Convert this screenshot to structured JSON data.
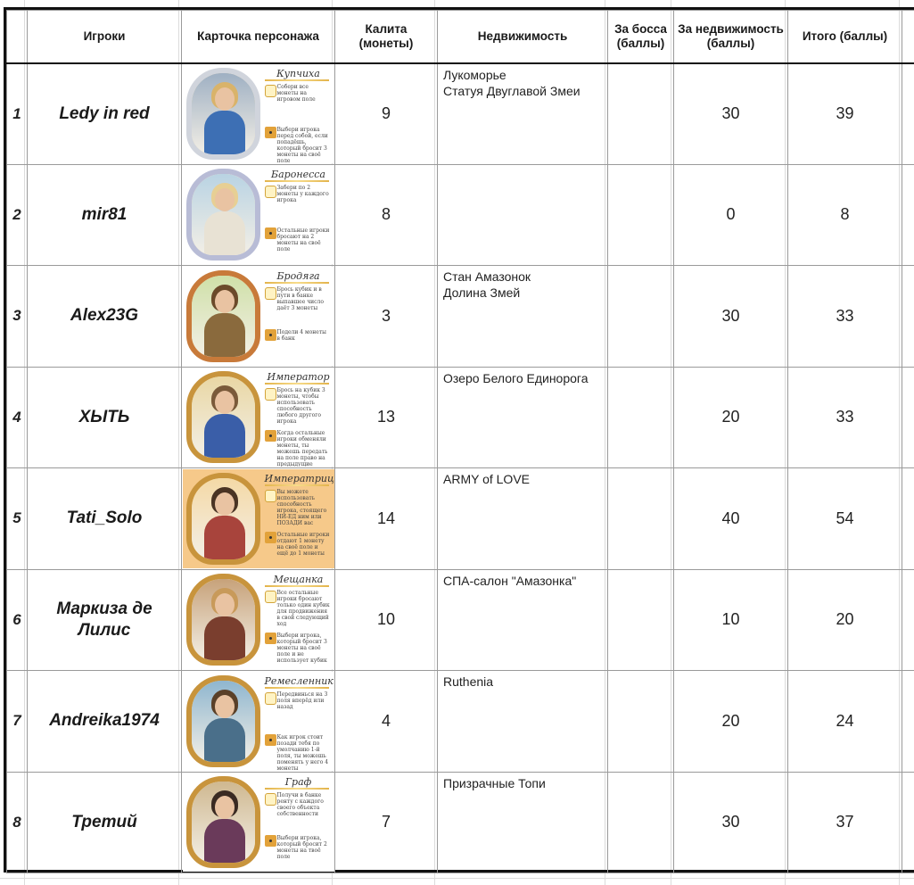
{
  "header": {
    "players": "Игроки",
    "card": "Карточка персонажа",
    "coins": "Калита (монеты)",
    "property": "Недвижимость",
    "boss": "За босса (баллы)",
    "property_pts": "За недвижимость (баллы)",
    "total": "Итого (баллы)"
  },
  "rows": [
    {
      "rank": "1",
      "name": "Ledy in red",
      "card_title": "Купчиха",
      "card_t1": "Собери все монеты на игровом поле",
      "card_t2": "Выбери игрока перед собой, если попадёшь, который бросит 3 монеты на своё поле",
      "coins": "9",
      "property_1": "Лукоморье",
      "property_2": "Статуя Двуглавой Змеи",
      "boss": "",
      "property_pts": "30",
      "total": "39",
      "frame": "#d0d4dc",
      "hair": "#d9b36a",
      "body": "#3d6fb4",
      "bg": "#9fb0c3"
    },
    {
      "rank": "2",
      "name": "mir81",
      "card_title": "Баронесса",
      "card_t1": "Забери по 2 монеты у каждого игрока",
      "card_t2": "Остальные игроки бросают на 2 монеты на своё поле",
      "coins": "8",
      "property_1": "",
      "property_2": "",
      "boss": "",
      "property_pts": "0",
      "total": "8",
      "frame": "#b8bcd6",
      "hair": "#e7cf94",
      "body": "#e8e2d4",
      "bg": "#b9d3e3"
    },
    {
      "rank": "3",
      "name": "Alex23G",
      "card_title": "Бродяга",
      "card_t1": "Брось кубик и в пути в банке выпавшее число даёт 3 монеты",
      "card_t2": "Подели 4 монеты в банк",
      "coins": "3",
      "property_1": "Стан Амазонок",
      "property_2": "Долина Змей",
      "boss": "",
      "property_pts": "30",
      "total": "33",
      "frame": "#c87a3a",
      "hair": "#6b4a2a",
      "body": "#8a6a3d",
      "bg": "#cfe0a8"
    },
    {
      "rank": "4",
      "name": "ХЫТЬ",
      "card_title": "Император",
      "card_t1": "Брось на кубик 3 монеты, чтобы использовать способность любого другого игрока",
      "card_t2": "Когда остальные игроки обменяли монеты, ты можешь передать на поле право на предыдущие игроки",
      "coins": "13",
      "property_1": "Озеро Белого Единорога",
      "property_2": "",
      "boss": "",
      "property_pts": "20",
      "total": "33",
      "frame": "#c8943c",
      "hair": "#7a5a3a",
      "body": "#3a5ea8",
      "bg": "#e9d7a4"
    },
    {
      "rank": "5",
      "name": "Tati_Solo",
      "card_title": "Императрица",
      "card_t1": "Вы можете использовать способность игрока, стоящего НИ-ЕД ним или ПОЗАДИ вас",
      "card_t2": "Остальные игроки отдают 1 монету на своё поле и ещё до 1 монеты",
      "coins": "14",
      "property_1": "ARMY of LOVE",
      "property_2": "",
      "boss": "",
      "property_pts": "40",
      "total": "54",
      "frame": "#c8943c",
      "hair": "#4a3424",
      "body": "#a8443c",
      "bg": "#f4d9a6"
    },
    {
      "rank": "6",
      "name": "Маркиза де Лилис",
      "card_title": "Мещанка",
      "card_t1": "Все остальные игроки бросают только один кубик для продвижения в свой следующий ход",
      "card_t2": "Выбери игрока, который бросит 3 монеты на своё поле и не использует кубик",
      "coins": "10",
      "property_1": "СПА-салон \"Амазонка\"",
      "property_2": "",
      "boss": "",
      "property_pts": "10",
      "total": "20",
      "frame": "#c8943c",
      "hair": "#c89a5a",
      "body": "#7a3e2e",
      "bg": "#c7a27a"
    },
    {
      "rank": "7",
      "name": "Andreika1974",
      "card_title": "Ремесленник",
      "card_t1": "Передвинься на 3 поля вперёд или назад",
      "card_t2": "Как игрок стоит позади тебя по умолчанию 1-й поля, ты можешь поменять у него 4 монеты",
      "coins": "4",
      "property_1": "Ruthenia",
      "property_2": "",
      "boss": "",
      "property_pts": "20",
      "total": "24",
      "frame": "#c8943c",
      "hair": "#5a4028",
      "body": "#4a6f8a",
      "bg": "#8fb6cf"
    },
    {
      "rank": "8",
      "name": "Третий",
      "card_title": "Граф",
      "card_t1": "Получи в банке ренту с каждого своего объекта собственности",
      "card_t2": "Выбери игрока, который бросит 2 монеты на твоё поле",
      "coins": "7",
      "property_1": "Призрачные Топи",
      "property_2": "",
      "boss": "",
      "property_pts": "30",
      "total": "37",
      "frame": "#c8943c",
      "hair": "#3a2a22",
      "body": "#6a3a5a",
      "bg": "#cfb890"
    }
  ]
}
